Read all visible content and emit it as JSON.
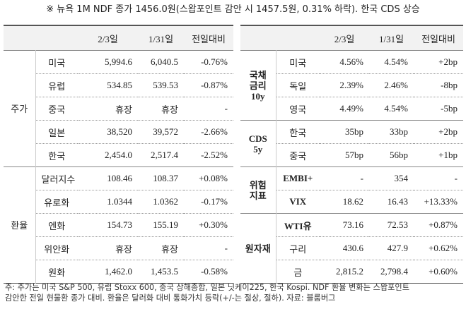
{
  "title": "※ 뉴욕 1M NDF 종가 1456.0원(스왑포인트 감안 시 1457.5원, 0.31% 하락). 한국 CDS 상승",
  "left_table": {
    "header": [
      "2/3일",
      "1/31일",
      "전일대비"
    ],
    "groups": [
      {
        "label": [
          "주가"
        ],
        "rows": [
          [
            "미국",
            "5,994.6",
            "6,040.5",
            "-0.76%"
          ],
          [
            "유럽",
            "534.85",
            "539.53",
            "-0.87%"
          ],
          [
            "중국",
            "휴장",
            "휴장",
            "-"
          ],
          [
            "일본",
            "38,520",
            "39,572",
            "-2.66%"
          ],
          [
            "한국",
            "2,454.0",
            "2,517.4",
            "-2.52%"
          ]
        ]
      },
      {
        "label": [
          "환율"
        ],
        "rows": [
          [
            "달러지수",
            "108.46",
            "108.37",
            "+0.08%"
          ],
          [
            "유로화",
            "1.0344",
            "1.0362",
            "-0.17%"
          ],
          [
            "엔화",
            "154.73",
            "155.19",
            "+0.30%"
          ],
          [
            "위안화",
            "휴장",
            "휴장",
            "-"
          ],
          [
            "원화",
            "1,462.0",
            "1,453.5",
            "-0.58%"
          ]
        ]
      }
    ]
  },
  "right_table": {
    "header": [
      "2/3일",
      "1/31일",
      "전일대비"
    ],
    "groups": [
      {
        "label": [
          "국채",
          "금리",
          "10y"
        ],
        "rows": [
          [
            "미국",
            "4.56%",
            "4.54%",
            "+2bp"
          ],
          [
            "독일",
            "2.39%",
            "2.46%",
            "-8bp"
          ],
          [
            "영국",
            "4.49%",
            "4.54%",
            "-5bp"
          ]
        ]
      },
      {
        "label": [
          "CDS",
          "5y"
        ],
        "rows": [
          [
            "한국",
            "35bp",
            "33bp",
            "+2bp"
          ],
          [
            "중국",
            "57bp",
            "56bp",
            "+1bp"
          ]
        ]
      },
      {
        "label": [
          "위험",
          "지표"
        ],
        "rows": [
          [
            "EMBI+",
            "-",
            "354",
            "-"
          ],
          [
            "VIX",
            "18.62",
            "16.43",
            "+13.33%"
          ]
        ]
      },
      {
        "label": [
          "원자재"
        ],
        "rows": [
          [
            "WTI유",
            "73.16",
            "72.53",
            "+0.87%"
          ],
          [
            "구리",
            "430.6",
            "427.9",
            "+0.62%"
          ],
          [
            "금",
            "2,815.2",
            "2,798.4",
            "+0.60%"
          ]
        ]
      }
    ]
  },
  "footnote": [
    "주: 주가는 미국 S&P 500, 유럽 Stoxx 600, 중국 상해종합, 일본 닛케이225, 한국 Kospi. NDF 환율 변화는 스왑포인트",
    "감안한 전일 현물환 종가 대비. 환율은 달러화 대비 통화가치 등락(+/-는 절상, 절하). 자료: 블룸버그"
  ]
}
